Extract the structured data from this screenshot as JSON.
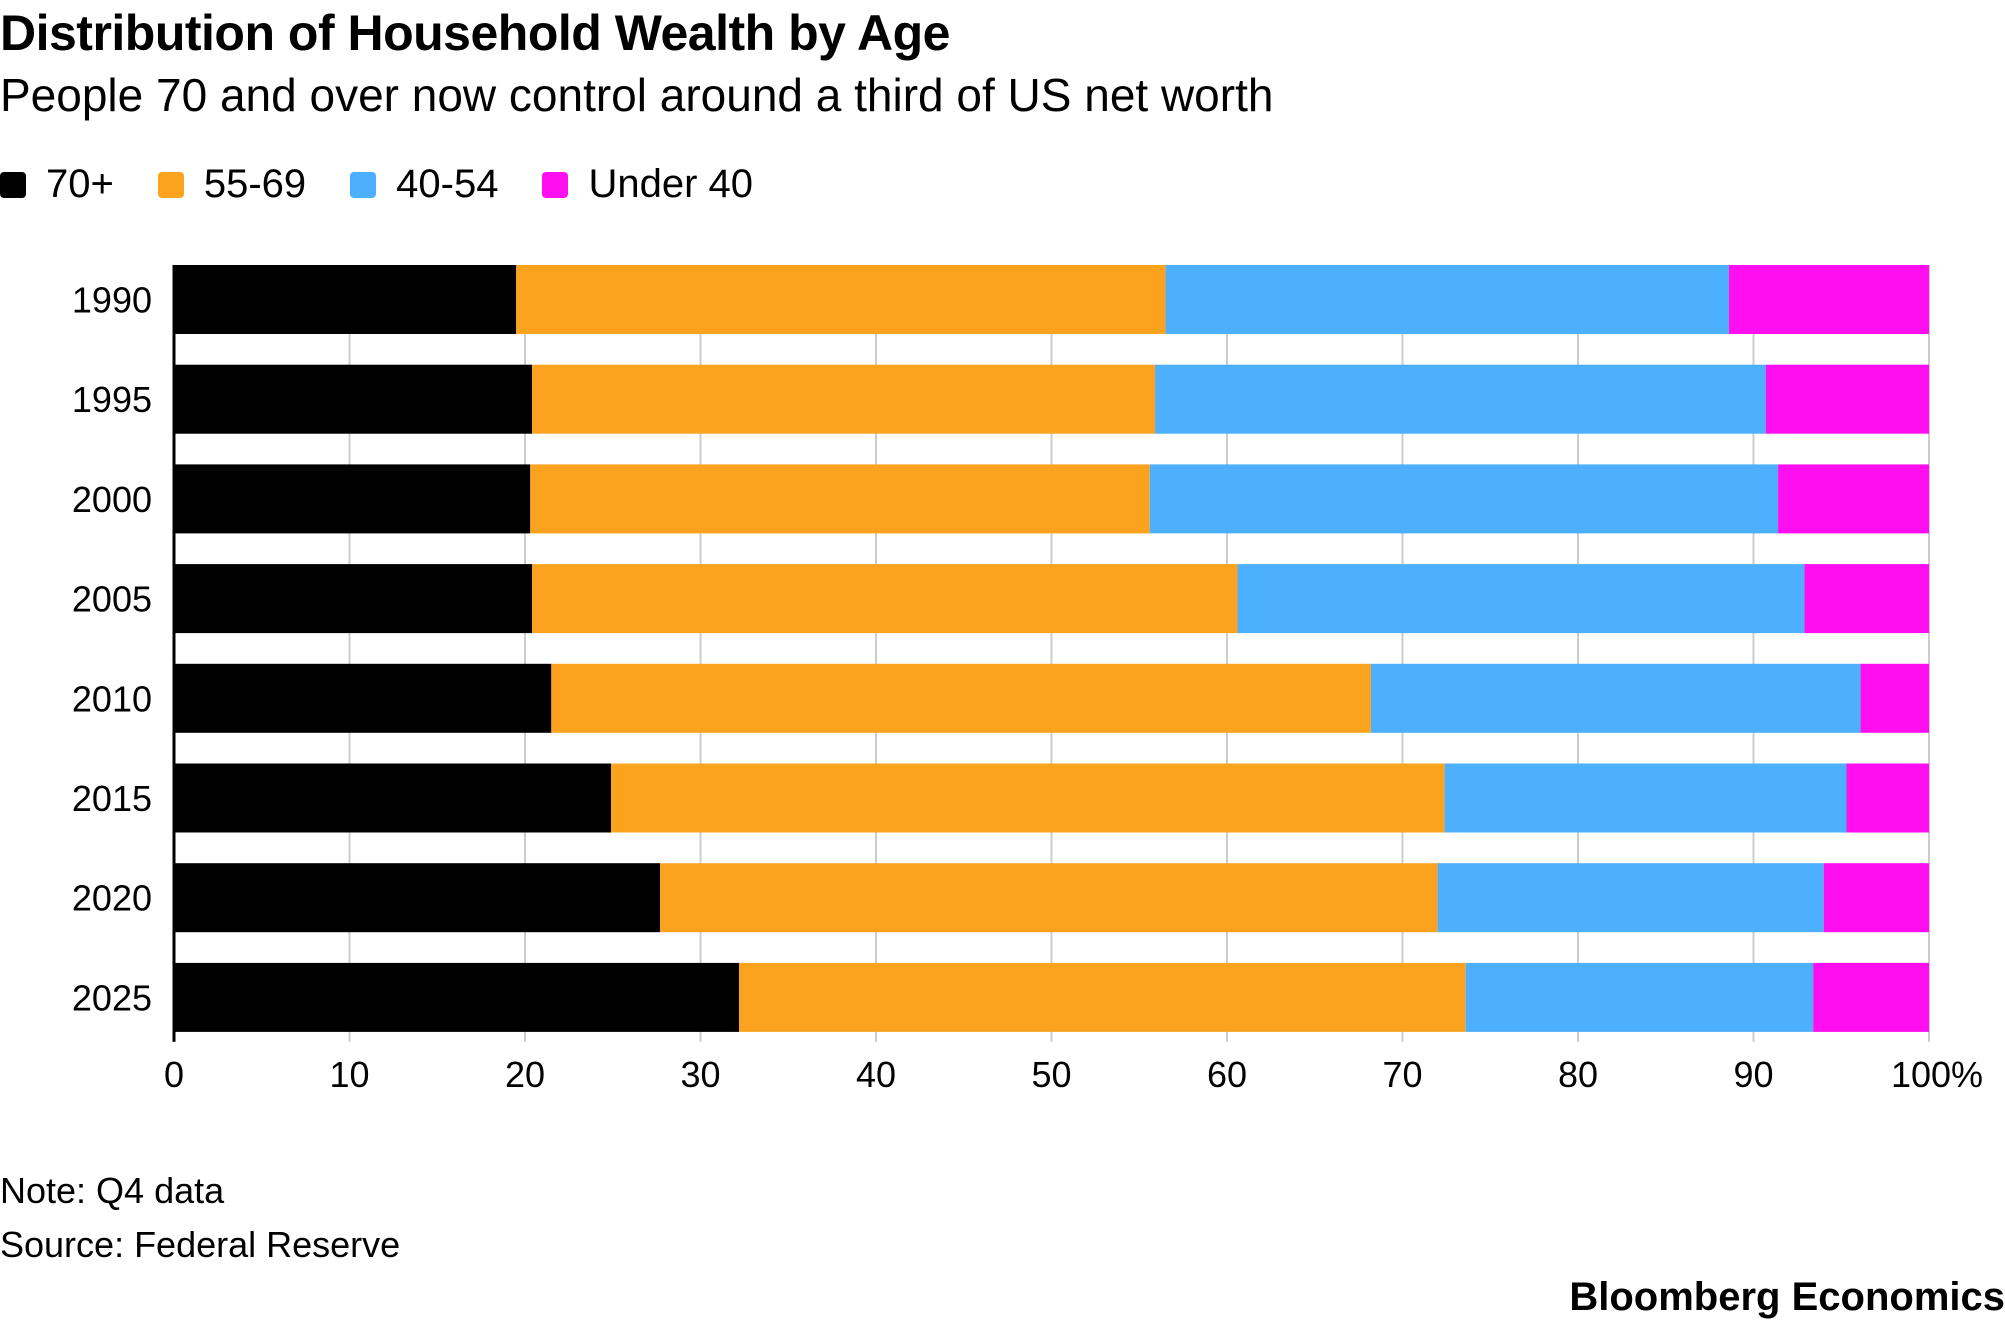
{
  "title": "Distribution of Household Wealth by Age",
  "subtitle": "People 70 and over now control around a third of US net worth",
  "note": "Note: Q4 data",
  "source": "Source: Federal Reserve",
  "brand": "Bloomberg Economics",
  "chart_data": {
    "type": "bar",
    "orientation": "horizontal-stacked",
    "categories": [
      "1990",
      "1995",
      "2000",
      "2005",
      "2010",
      "2015",
      "2020",
      "2025"
    ],
    "series": [
      {
        "name": "70+",
        "color": "#000000",
        "values": [
          19.5,
          20.4,
          20.3,
          20.4,
          21.5,
          24.9,
          27.7,
          32.2
        ]
      },
      {
        "name": "55-69",
        "color": "#FBA31E",
        "values": [
          37.0,
          35.5,
          35.3,
          40.2,
          46.7,
          47.5,
          44.3,
          41.4
        ]
      },
      {
        "name": "40-54",
        "color": "#4DB0FF",
        "values": [
          32.1,
          34.8,
          35.8,
          32.3,
          27.9,
          22.9,
          22.0,
          19.8
        ]
      },
      {
        "name": "Under 40",
        "color": "#FF0FF0",
        "values": [
          11.4,
          9.3,
          8.6,
          7.1,
          3.9,
          4.7,
          6.0,
          6.6
        ]
      }
    ],
    "xlim": [
      0,
      100
    ],
    "xticks": [
      "0",
      "10",
      "20",
      "30",
      "40",
      "50",
      "60",
      "70",
      "80",
      "90",
      "100%"
    ],
    "grid": true,
    "legend": "top-left"
  }
}
